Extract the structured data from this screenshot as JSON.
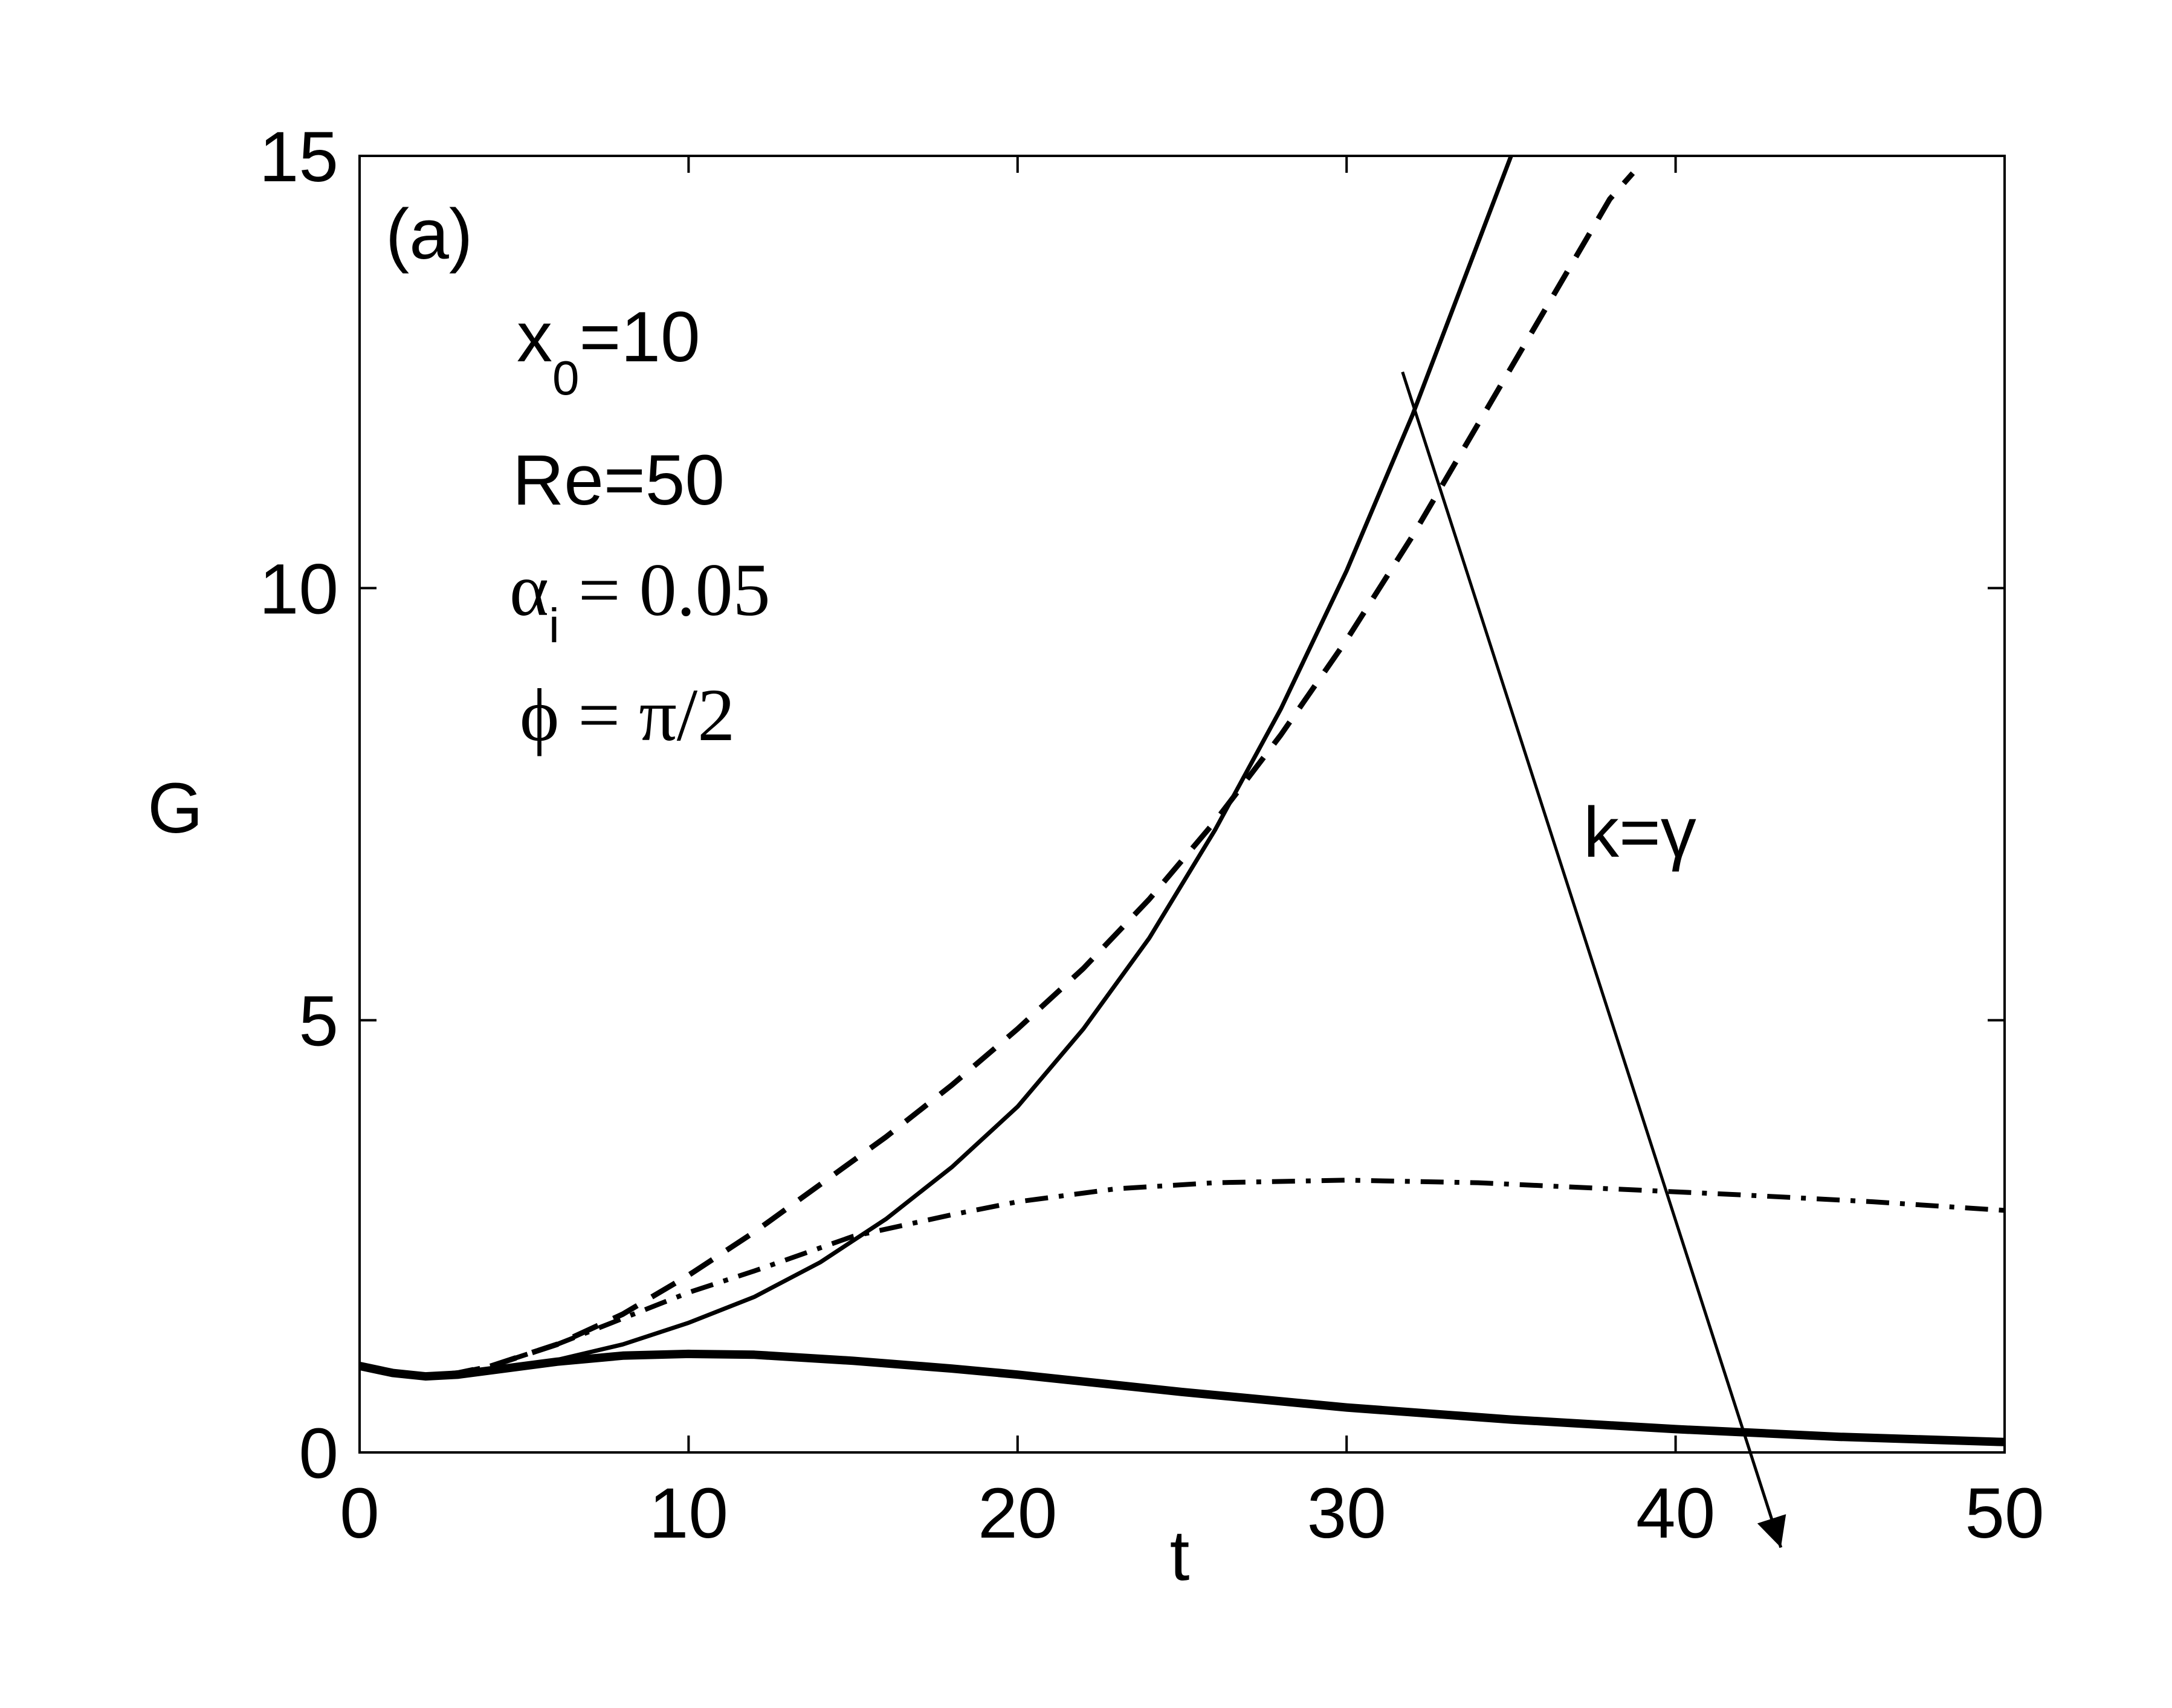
{
  "chart_data": {
    "type": "line",
    "xlabel": "t",
    "ylabel": "G",
    "xlim": [
      0,
      50
    ],
    "ylim": [
      0,
      15
    ],
    "xticks": [
      0,
      10,
      20,
      30,
      40,
      50
    ],
    "yticks": [
      0,
      5,
      10,
      15
    ],
    "grid": false,
    "panel_label": "(a)",
    "annotations": {
      "x0": {
        "base": "x",
        "sub": "0",
        "rest": "=10"
      },
      "re": "Re=50",
      "alpha": {
        "base": "α",
        "sub": "i",
        "rest": " = 0.05"
      },
      "phi": "ϕ = π/2",
      "k": "k=γ"
    },
    "series": [
      {
        "style": "solid-thin",
        "x": [
          0,
          1,
          2,
          3,
          4,
          6,
          8,
          10,
          12,
          14,
          16,
          18,
          20,
          22,
          24,
          26,
          28,
          30,
          32,
          34,
          35
        ],
        "y": [
          1.0,
          0.92,
          0.88,
          0.9,
          0.95,
          1.07,
          1.25,
          1.5,
          1.8,
          2.2,
          2.7,
          3.3,
          4.0,
          4.9,
          5.95,
          7.2,
          8.6,
          10.2,
          12.0,
          14.0,
          15.0
        ]
      },
      {
        "style": "dashed",
        "x": [
          0,
          1,
          2,
          3,
          4,
          6,
          8,
          10,
          12,
          14,
          16,
          18,
          20,
          22,
          24,
          26,
          28,
          30,
          32,
          34,
          36,
          38,
          38.7
        ],
        "y": [
          1.0,
          0.92,
          0.88,
          0.92,
          1.0,
          1.25,
          1.6,
          2.05,
          2.55,
          3.1,
          3.65,
          4.25,
          4.9,
          5.6,
          6.4,
          7.3,
          8.3,
          9.4,
          10.6,
          11.9,
          13.2,
          14.5,
          14.8
        ]
      },
      {
        "style": "dash-dot",
        "x": [
          0,
          1,
          2,
          3,
          4,
          6,
          8,
          10,
          12,
          15,
          18,
          20,
          23,
          26,
          30,
          34,
          38,
          42,
          46,
          50
        ],
        "y": [
          1.0,
          0.92,
          0.88,
          0.92,
          1.0,
          1.25,
          1.55,
          1.85,
          2.1,
          2.5,
          2.75,
          2.9,
          3.05,
          3.12,
          3.15,
          3.12,
          3.05,
          2.98,
          2.9,
          2.8
        ]
      },
      {
        "style": "solid-thick",
        "x": [
          0,
          1,
          2,
          3,
          4,
          6,
          8,
          10,
          12,
          15,
          18,
          20,
          25,
          30,
          35,
          40,
          45,
          50
        ],
        "y": [
          1.0,
          0.92,
          0.88,
          0.9,
          0.95,
          1.05,
          1.12,
          1.14,
          1.13,
          1.06,
          0.97,
          0.9,
          0.7,
          0.52,
          0.38,
          0.27,
          0.18,
          0.12
        ]
      }
    ],
    "arrow": {
      "from": [
        31.7,
        12.5
      ],
      "to": [
        43.2,
        -1.1
      ]
    }
  }
}
